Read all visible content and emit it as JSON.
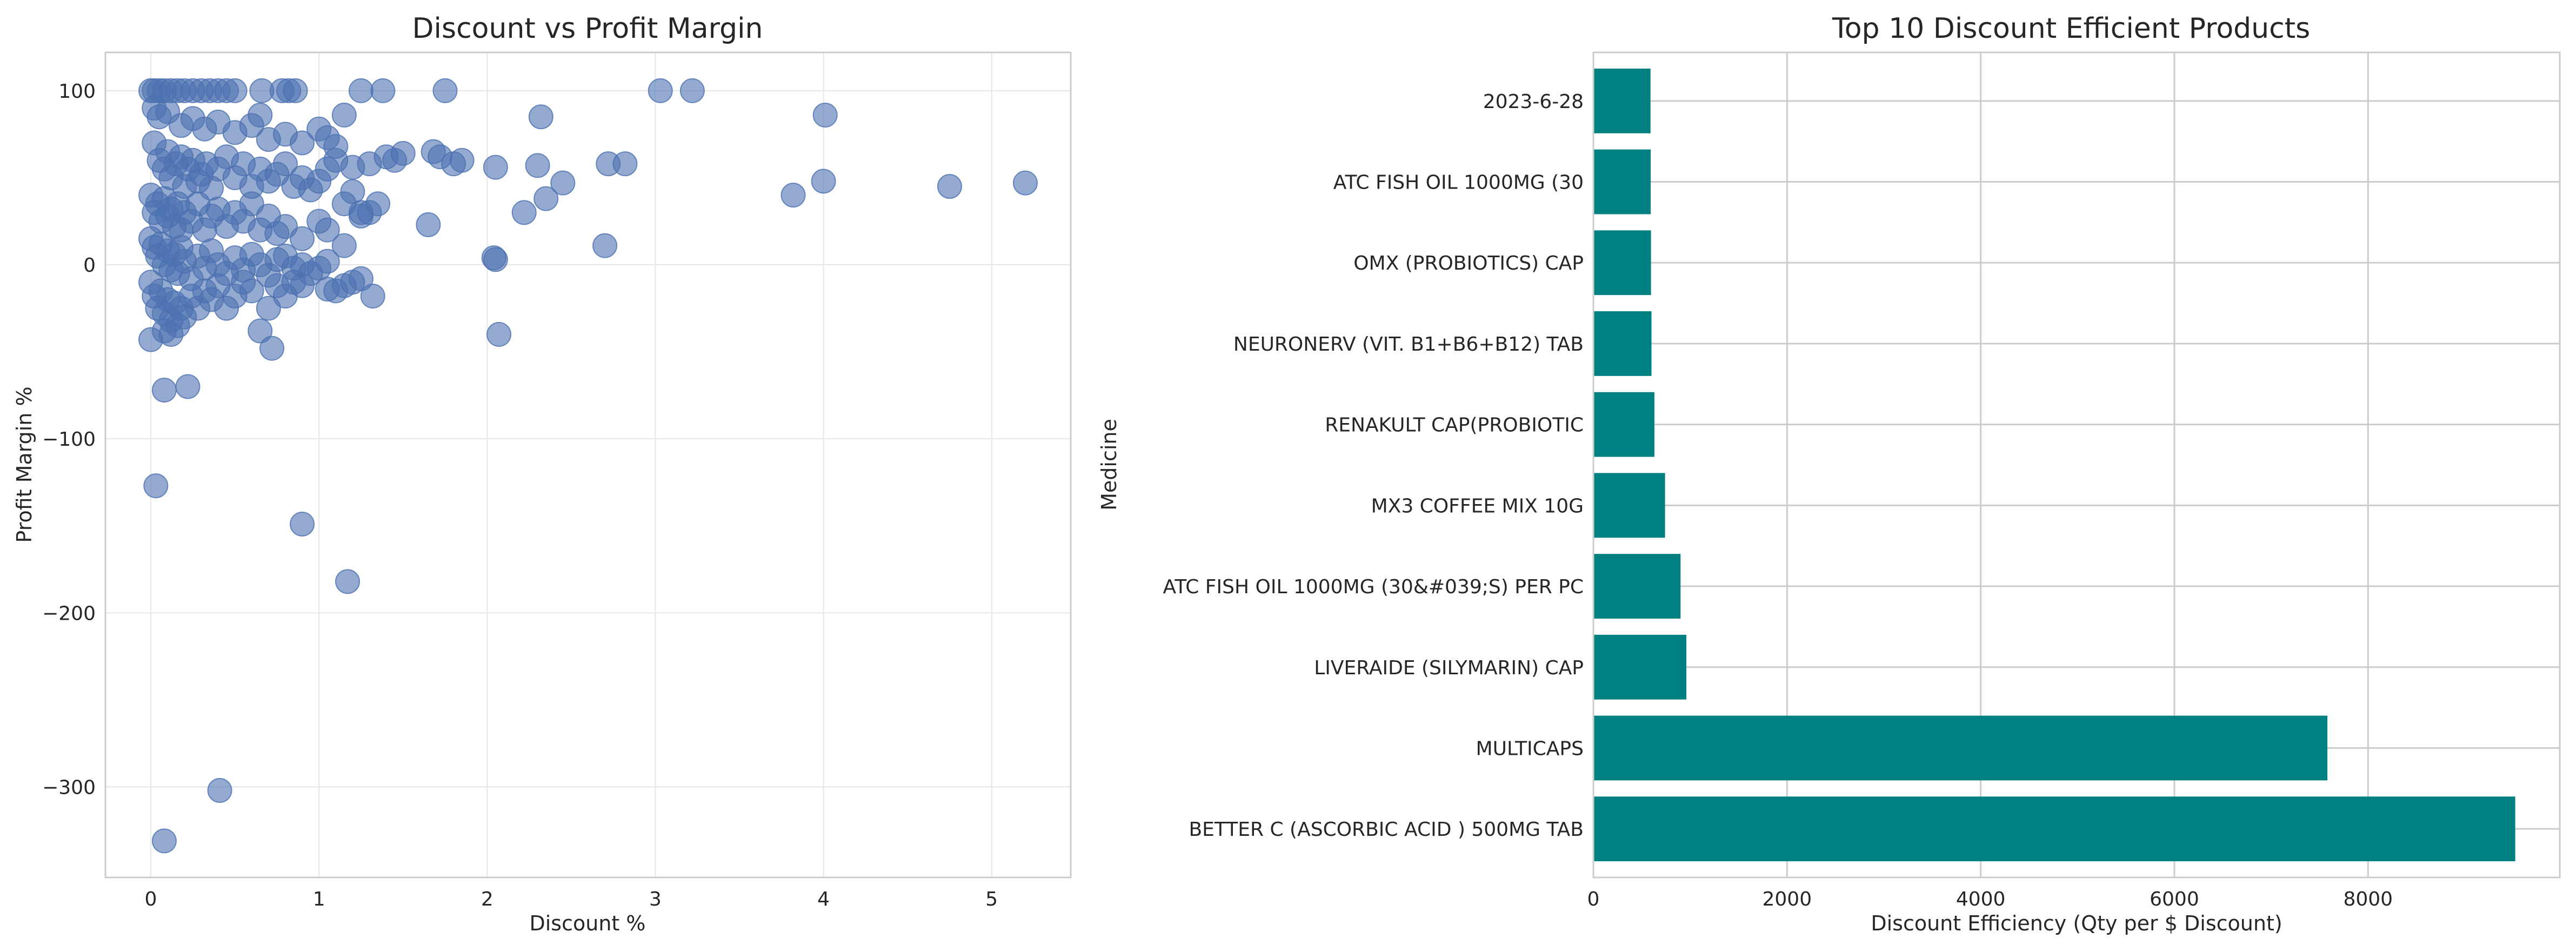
{
  "chart_data": [
    {
      "type": "scatter",
      "title": "Discount vs Profit Margin",
      "xlabel": "Discount %",
      "ylabel": "Profit Margin %",
      "xlim": [
        -0.27,
        5.47
      ],
      "ylim": [
        -352,
        122
      ],
      "xticks": [
        0,
        1,
        2,
        3,
        4,
        5
      ],
      "xtick_labels": [
        "0",
        "1",
        "2",
        "3",
        "4",
        "5"
      ],
      "yticks": [
        -300,
        -200,
        -100,
        0,
        100
      ],
      "ytick_labels": [
        "−300",
        "−200",
        "−100",
        "0",
        "100"
      ],
      "grid": true,
      "color": "#4c72b0",
      "points": [
        [
          0.0,
          100
        ],
        [
          0.02,
          100
        ],
        [
          0.05,
          100
        ],
        [
          0.08,
          100
        ],
        [
          0.12,
          100
        ],
        [
          0.16,
          100
        ],
        [
          0.2,
          100
        ],
        [
          0.25,
          100
        ],
        [
          0.3,
          100
        ],
        [
          0.35,
          100
        ],
        [
          0.4,
          100
        ],
        [
          0.45,
          100
        ],
        [
          0.5,
          100
        ],
        [
          0.66,
          100
        ],
        [
          0.78,
          100
        ],
        [
          0.82,
          100
        ],
        [
          0.86,
          100
        ],
        [
          1.25,
          100
        ],
        [
          1.38,
          100
        ],
        [
          1.75,
          100
        ],
        [
          3.03,
          100
        ],
        [
          3.22,
          100
        ],
        [
          0.02,
          90
        ],
        [
          0.05,
          85
        ],
        [
          0.1,
          88
        ],
        [
          0.18,
          80
        ],
        [
          0.25,
          84
        ],
        [
          0.32,
          78
        ],
        [
          0.4,
          82
        ],
        [
          0.5,
          76
        ],
        [
          0.6,
          80
        ],
        [
          0.65,
          86
        ],
        [
          0.7,
          72
        ],
        [
          0.8,
          75
        ],
        [
          0.9,
          70
        ],
        [
          1.0,
          78
        ],
        [
          1.05,
          73
        ],
        [
          1.1,
          68
        ],
        [
          1.15,
          86
        ],
        [
          1.2,
          56
        ],
        [
          1.25,
          30
        ],
        [
          1.3,
          58
        ],
        [
          1.35,
          35
        ],
        [
          1.4,
          62
        ],
        [
          1.45,
          60
        ],
        [
          1.5,
          64
        ],
        [
          1.65,
          23
        ],
        [
          1.68,
          65
        ],
        [
          1.72,
          62
        ],
        [
          1.8,
          58
        ],
        [
          1.85,
          60
        ],
        [
          2.05,
          56
        ],
        [
          2.22,
          30
        ],
        [
          2.3,
          57
        ],
        [
          2.32,
          85
        ],
        [
          2.35,
          38
        ],
        [
          2.45,
          47
        ],
        [
          2.7,
          11
        ],
        [
          2.72,
          58
        ],
        [
          2.82,
          58
        ],
        [
          3.82,
          40
        ],
        [
          4.0,
          48
        ],
        [
          4.01,
          86
        ],
        [
          4.75,
          45
        ],
        [
          5.2,
          47
        ],
        [
          0.02,
          70
        ],
        [
          0.05,
          60
        ],
        [
          0.08,
          55
        ],
        [
          0.1,
          65
        ],
        [
          0.12,
          50
        ],
        [
          0.15,
          58
        ],
        [
          0.18,
          62
        ],
        [
          0.2,
          45
        ],
        [
          0.22,
          55
        ],
        [
          0.25,
          60
        ],
        [
          0.28,
          48
        ],
        [
          0.3,
          52
        ],
        [
          0.33,
          58
        ],
        [
          0.36,
          44
        ],
        [
          0.4,
          55
        ],
        [
          0.45,
          62
        ],
        [
          0.5,
          50
        ],
        [
          0.55,
          58
        ],
        [
          0.6,
          45
        ],
        [
          0.65,
          55
        ],
        [
          0.7,
          48
        ],
        [
          0.75,
          52
        ],
        [
          0.8,
          58
        ],
        [
          0.85,
          45
        ],
        [
          0.9,
          50
        ],
        [
          0.95,
          43
        ],
        [
          1.0,
          48
        ],
        [
          1.05,
          55
        ],
        [
          1.1,
          60
        ],
        [
          1.15,
          35
        ],
        [
          1.2,
          42
        ],
        [
          1.25,
          28
        ],
        [
          1.3,
          30
        ],
        [
          0.0,
          40
        ],
        [
          0.02,
          30
        ],
        [
          0.04,
          35
        ],
        [
          0.06,
          25
        ],
        [
          0.08,
          38
        ],
        [
          0.1,
          28
        ],
        [
          0.12,
          32
        ],
        [
          0.14,
          22
        ],
        [
          0.16,
          35
        ],
        [
          0.18,
          20
        ],
        [
          0.2,
          30
        ],
        [
          0.24,
          25
        ],
        [
          0.28,
          35
        ],
        [
          0.32,
          20
        ],
        [
          0.36,
          28
        ],
        [
          0.4,
          32
        ],
        [
          0.45,
          22
        ],
        [
          0.5,
          30
        ],
        [
          0.55,
          25
        ],
        [
          0.6,
          35
        ],
        [
          0.65,
          20
        ],
        [
          0.7,
          28
        ],
        [
          0.75,
          18
        ],
        [
          0.8,
          22
        ],
        [
          0.9,
          15
        ],
        [
          1.0,
          25
        ],
        [
          1.05,
          20
        ],
        [
          0.0,
          15
        ],
        [
          0.02,
          10
        ],
        [
          0.04,
          5
        ],
        [
          0.06,
          12
        ],
        [
          0.08,
          0
        ],
        [
          0.1,
          8
        ],
        [
          0.12,
          -3
        ],
        [
          0.14,
          6
        ],
        [
          0.16,
          -5
        ],
        [
          0.18,
          10
        ],
        [
          0.2,
          2
        ],
        [
          0.24,
          -8
        ],
        [
          0.28,
          5
        ],
        [
          0.32,
          -2
        ],
        [
          0.36,
          8
        ],
        [
          0.4,
          0
        ],
        [
          0.45,
          -5
        ],
        [
          0.5,
          4
        ],
        [
          0.55,
          -3
        ],
        [
          0.6,
          6
        ],
        [
          0.65,
          0
        ],
        [
          0.7,
          -6
        ],
        [
          0.75,
          3
        ],
        [
          0.8,
          5
        ],
        [
          0.85,
          -2
        ],
        [
          0.9,
          0
        ],
        [
          0.95,
          -5
        ],
        [
          1.0,
          -2
        ],
        [
          1.05,
          2
        ],
        [
          1.15,
          11
        ],
        [
          1.2,
          -10
        ],
        [
          1.25,
          -8
        ],
        [
          2.04,
          4
        ],
        [
          2.05,
          3
        ],
        [
          0.0,
          -10
        ],
        [
          0.02,
          -18
        ],
        [
          0.04,
          -25
        ],
        [
          0.06,
          -15
        ],
        [
          0.08,
          -28
        ],
        [
          0.1,
          -20
        ],
        [
          0.12,
          -32
        ],
        [
          0.14,
          -22
        ],
        [
          0.16,
          -35
        ],
        [
          0.18,
          -25
        ],
        [
          0.2,
          -30
        ],
        [
          0.24,
          -18
        ],
        [
          0.28,
          -25
        ],
        [
          0.32,
          -15
        ],
        [
          0.36,
          -20
        ],
        [
          0.4,
          -12
        ],
        [
          0.45,
          -25
        ],
        [
          0.5,
          -18
        ],
        [
          0.55,
          -10
        ],
        [
          0.6,
          -15
        ],
        [
          0.65,
          -38
        ],
        [
          0.7,
          -25
        ],
        [
          0.75,
          -12
        ],
        [
          0.8,
          -18
        ],
        [
          0.85,
          -10
        ],
        [
          0.9,
          -12
        ],
        [
          1.05,
          -14
        ],
        [
          1.1,
          -15
        ],
        [
          1.15,
          -12
        ],
        [
          1.32,
          -18
        ],
        [
          0.0,
          -43
        ],
        [
          0.08,
          -38
        ],
        [
          0.12,
          -40
        ],
        [
          0.72,
          -48
        ],
        [
          2.07,
          -40
        ],
        [
          0.08,
          -72
        ],
        [
          0.22,
          -70
        ],
        [
          0.03,
          -127
        ],
        [
          0.9,
          -149
        ],
        [
          1.17,
          -182
        ],
        [
          0.41,
          -302
        ],
        [
          0.08,
          -331
        ]
      ]
    },
    {
      "type": "bar",
      "orientation": "horizontal",
      "title": "Top 10 Discount Efficient Products",
      "xlabel": "Discount Efficiency (Qty per $ Discount)",
      "ylabel": "Medicine",
      "xlim": [
        0,
        9980
      ],
      "xticks": [
        0,
        2000,
        4000,
        6000,
        8000
      ],
      "xtick_labels": [
        "0",
        "2000",
        "4000",
        "6000",
        "8000"
      ],
      "grid": true,
      "color": "#008080",
      "categories": [
        "BETTER C (ASCORBIC ACID ) 500MG TAB",
        "MULTICAPS",
        "LIVERAIDE (SILYMARIN) CAP",
        "ATC FISH OIL 1000MG (30&#039;S) PER PC",
        "MX3 COFFEE MIX 10G",
        "RENAKULT CAP(PROBIOTIC",
        "NEURONERV (VIT. B1+B6+B12) TAB",
        "OMX (PROBIOTICS) CAP",
        "ATC FISH OIL 1000MG (30",
        "2023-6-28"
      ],
      "values": [
        9520,
        7580,
        960,
        900,
        740,
        630,
        600,
        595,
        592,
        590
      ]
    }
  ]
}
